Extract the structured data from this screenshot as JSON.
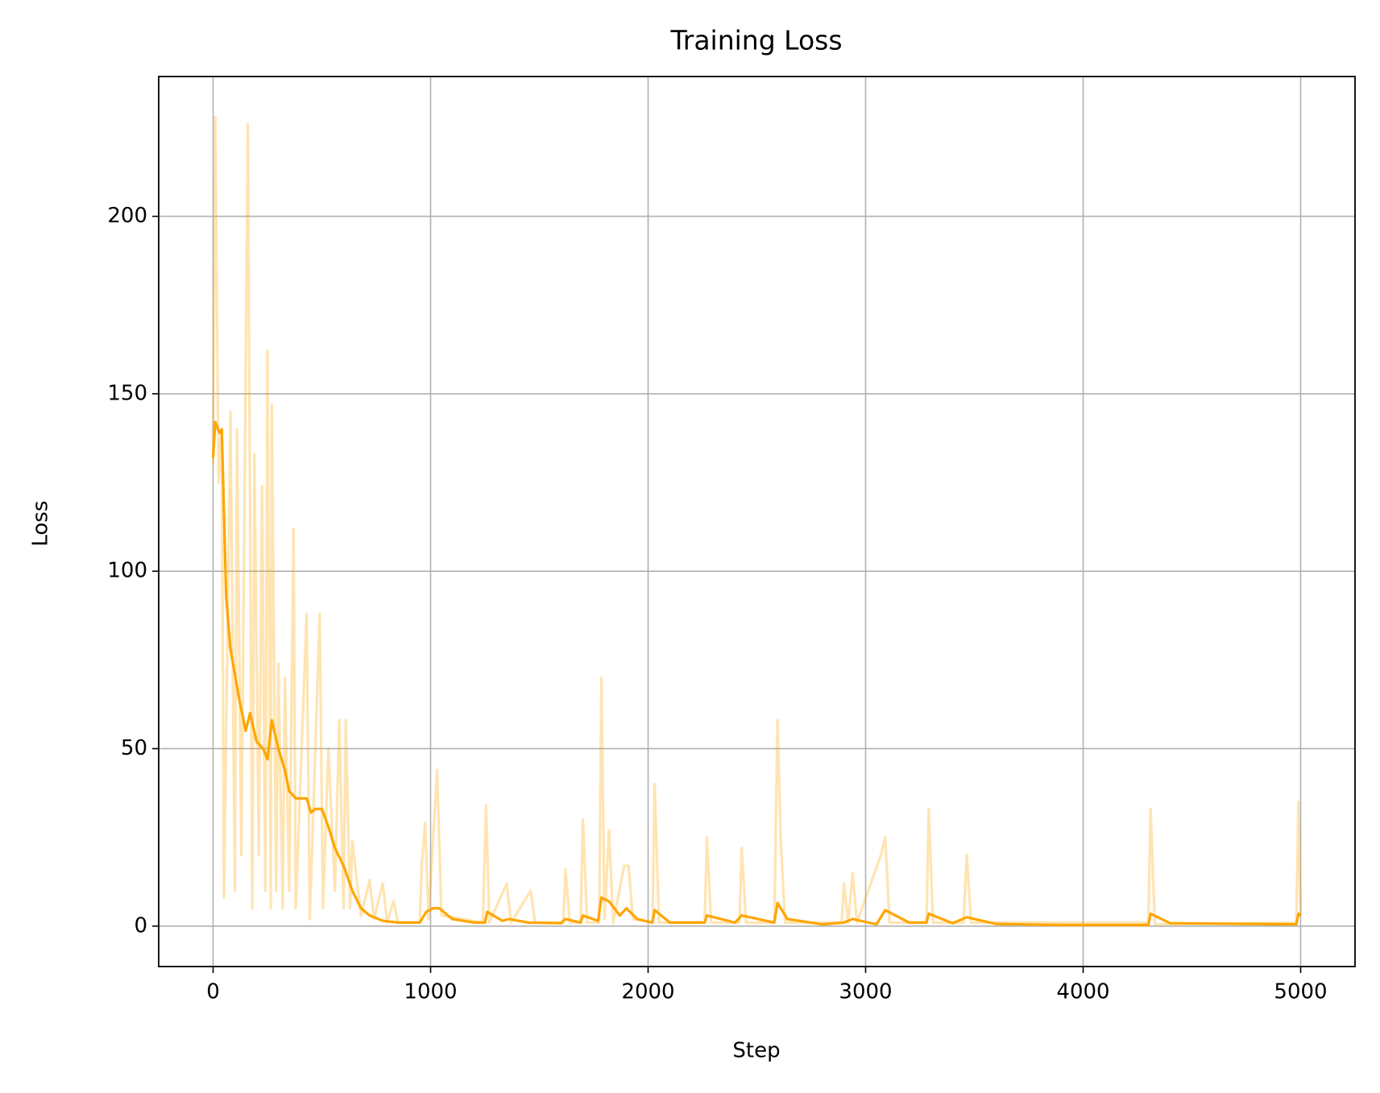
{
  "chart_data": {
    "type": "line",
    "title": "Training Loss",
    "xlabel": "Step",
    "ylabel": "Loss",
    "xlim": [
      -250,
      5250
    ],
    "ylim": [
      -11.4,
      239.4
    ],
    "xticks": [
      0,
      1000,
      2000,
      3000,
      4000,
      5000
    ],
    "yticks": [
      0,
      50,
      100,
      150,
      200
    ],
    "grid": true,
    "series": [
      {
        "color": "#ffa500",
        "alpha": 0.3,
        "x": [
          0,
          10,
          25,
          40,
          50,
          80,
          100,
          110,
          130,
          160,
          180,
          190,
          210,
          225,
          240,
          250,
          265,
          270,
          290,
          300,
          320,
          330,
          350,
          370,
          380,
          430,
          445,
          490,
          505,
          530,
          560,
          580,
          600,
          610,
          630,
          640,
          680,
          720,
          740,
          780,
          800,
          830,
          850,
          950,
          960,
          975,
          990,
          1030,
          1050,
          1240,
          1255,
          1270,
          1350,
          1370,
          1460,
          1480,
          1610,
          1620,
          1640,
          1690,
          1700,
          1720,
          1775,
          1785,
          1800,
          1820,
          1840,
          1890,
          1910,
          1930,
          2020,
          2030,
          2050,
          2260,
          2270,
          2290,
          2420,
          2430,
          2450,
          2580,
          2595,
          2610,
          2630,
          2890,
          2900,
          2920,
          2940,
          2960,
          3070,
          3090,
          3110,
          3280,
          3290,
          3310,
          3450,
          3465,
          3485,
          4300,
          4310,
          4330,
          4980,
          4990,
          5000
        ],
        "values": [
          130,
          228,
          125,
          140,
          8,
          145,
          10,
          140,
          20,
          226,
          5,
          133,
          20,
          124,
          10,
          162,
          5,
          147,
          10,
          74,
          5,
          70,
          10,
          112,
          5,
          88,
          2,
          88,
          5,
          50,
          10,
          58,
          5,
          58,
          5,
          24,
          3,
          13,
          2,
          12,
          1,
          7,
          1,
          1,
          18,
          29,
          2,
          44,
          3,
          1,
          34,
          1,
          12,
          1,
          10,
          1,
          1,
          16,
          1,
          1,
          30,
          1,
          1,
          70,
          2,
          27,
          1,
          17,
          17,
          2,
          1,
          40,
          1,
          1,
          25,
          1,
          1,
          22,
          1,
          1,
          58,
          24,
          1,
          1,
          12,
          1,
          15,
          1,
          20,
          25,
          1,
          1,
          33,
          1,
          1,
          20,
          1,
          1,
          33,
          0.5,
          1,
          35,
          3
        ]
      },
      {
        "color": "#ffa500",
        "alpha": 1,
        "x": [
          0,
          10,
          30,
          40,
          60,
          80,
          100,
          120,
          150,
          170,
          200,
          230,
          250,
          270,
          300,
          330,
          350,
          380,
          430,
          450,
          470,
          500,
          530,
          560,
          600,
          640,
          680,
          720,
          780,
          850,
          950,
          980,
          1010,
          1040,
          1100,
          1200,
          1250,
          1260,
          1330,
          1360,
          1450,
          1600,
          1620,
          1690,
          1700,
          1770,
          1785,
          1820,
          1870,
          1900,
          1950,
          2020,
          2030,
          2100,
          2260,
          2270,
          2400,
          2430,
          2580,
          2595,
          2640,
          2800,
          2900,
          2940,
          3050,
          3090,
          3200,
          3280,
          3290,
          3400,
          3465,
          3600,
          3900,
          4300,
          4310,
          4400,
          4980,
          4990,
          5000
        ],
        "values": [
          132,
          142,
          139,
          140,
          93,
          78,
          71,
          64,
          55,
          60,
          52,
          50,
          47,
          58,
          50,
          44,
          38,
          36,
          36,
          32,
          33,
          33,
          28,
          22,
          17,
          10,
          5,
          3,
          1.5,
          1,
          1,
          4,
          5,
          5,
          2,
          1,
          1,
          4,
          1.5,
          2,
          1,
          0.8,
          2,
          1,
          3,
          1.5,
          8,
          7,
          3,
          5,
          2,
          1,
          4.5,
          1,
          1,
          3,
          1,
          3,
          1,
          6.5,
          2,
          0.5,
          1,
          2,
          0.5,
          4.5,
          1,
          1,
          3.5,
          0.8,
          2.5,
          0.6,
          0.3,
          0.3,
          3.5,
          0.8,
          0.5,
          3.5,
          3
        ]
      }
    ]
  }
}
